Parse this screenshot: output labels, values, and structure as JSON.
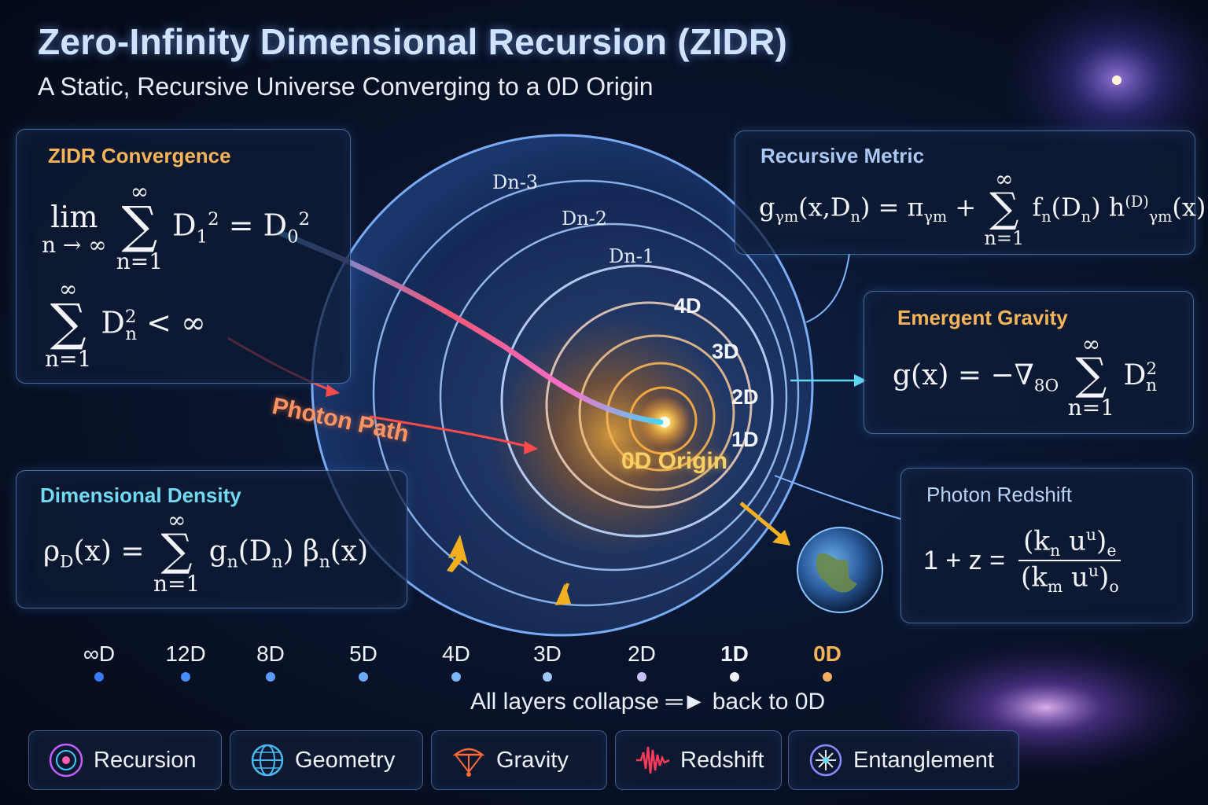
{
  "title": "Zero-Infinity Dimensional Recursion (ZIDR)",
  "subtitle": "A Static, Recursive Universe Converging to a 0D Origin",
  "panels": {
    "convergence": {
      "title": "ZIDR Convergence",
      "lim": "lim",
      "lim_sub": "n → ∞",
      "sum_sup": "∞",
      "sum_sub": "n=1",
      "eq1_term": "D",
      "eq1_sub1": "1",
      "eq1_sup": "2",
      "eq1_mid": " = D",
      "eq1_sub0": "0",
      "eq2_term": "D",
      "eq2_sub": "n",
      "eq2_rhs": " < ∞"
    },
    "metric": {
      "title": "Recursive Metric",
      "lhs": "g",
      "lhs_sub": "γm",
      "lhs_args": "(x,D",
      "lhs_args_sub": "n",
      "mid": ") = π",
      "mid_sub": "γm",
      "plus": " + ",
      "sum_sup": "∞",
      "sum_sub": "n=1",
      "rhs": " f",
      "rhs_sub": "n",
      "rhs2": "(D",
      "rhs2_sub": "n",
      "rhs3": ") h",
      "rhs3_sup": "(D)",
      "rhs3_sub": "γm",
      "rhs4": "(x)"
    },
    "gravity": {
      "title": "Emergent Gravity",
      "lhs": "g(x) = −∇",
      "lhs_sub": "8O",
      "sum_sup": "∞",
      "sum_sub": "n=1",
      "term": "D",
      "term_sub": "n",
      "term_sup": "2"
    },
    "density": {
      "title": "Dimensional Density",
      "lhs": "ρ",
      "lhs_sub": "D",
      "lhs2": "(x) = ",
      "sum_sup": "∞",
      "sum_sub": "n=1",
      "rhs": "g",
      "rhs_sub": "n",
      "rhs2": "(D",
      "rhs2_sub": "n",
      "rhs3": ") β",
      "rhs3_sub": "n",
      "rhs4": "(x)"
    },
    "redshift": {
      "title": "Photon Redshift",
      "lhs": "1 + z =",
      "num": "(k",
      "num_sub": "n",
      "num2": " u",
      "num2_sup": "u",
      "num3": ")",
      "num3_sub": "e",
      "den": "(k",
      "den_sub": "m",
      "den2": " u",
      "den2_sup": "u",
      "den3": ")",
      "den3_sub": "o"
    }
  },
  "rings": {
    "outer": [
      "Dn-3",
      "Dn-2",
      "Dn-1"
    ],
    "inner": [
      "4D",
      "3D",
      "2D",
      "1D"
    ],
    "origin": "0D Origin",
    "photon_path": "Photon Path"
  },
  "scale": {
    "labels": [
      "∞D",
      "12D",
      "8D",
      "5D",
      "4D",
      "3D",
      "2D",
      "1D",
      "0D"
    ],
    "caption": "All layers collapse ═► back to 0D"
  },
  "legend": [
    {
      "label": "Recursion",
      "icon": "recursion-icon"
    },
    {
      "label": "Geometry",
      "icon": "globe-icon"
    },
    {
      "label": "Gravity",
      "icon": "gravity-icon"
    },
    {
      "label": "Redshift",
      "icon": "waveform-icon"
    },
    {
      "label": "Entanglement",
      "icon": "entanglement-icon"
    }
  ],
  "colors": {
    "title": "#cfe3ff",
    "convergence": "#f6b45a",
    "metric": "#a9c8f4",
    "gravity": "#f6b45a",
    "density": "#72d9f2",
    "redshift": "#b8d4f6",
    "origin": "#f8d066",
    "photon": "#ff9464"
  }
}
